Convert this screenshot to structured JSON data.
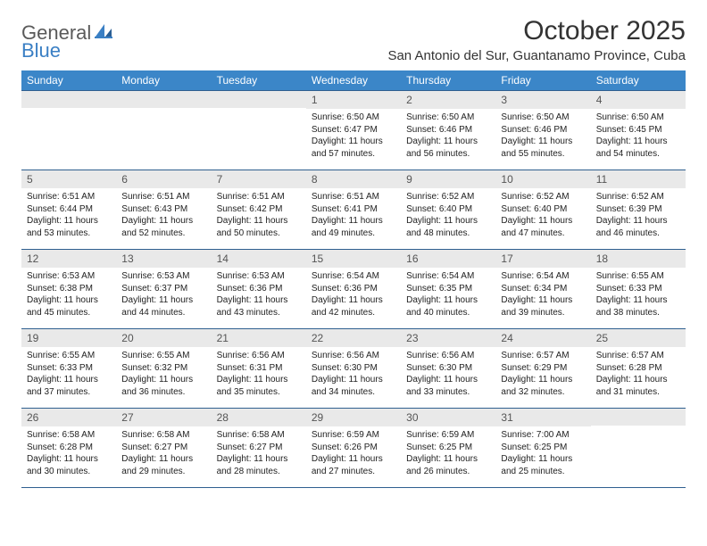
{
  "brand": {
    "general": "General",
    "blue": "Blue",
    "logo_color": "#3a7fc4"
  },
  "title": "October 2025",
  "location": "San Antonio del Sur, Guantanamo Province, Cuba",
  "header_bg": "#3b86c8",
  "header_text_color": "#ffffff",
  "daynum_bg": "#e9e9e9",
  "rule_color": "#2f5f8f",
  "weekdays": [
    "Sunday",
    "Monday",
    "Tuesday",
    "Wednesday",
    "Thursday",
    "Friday",
    "Saturday"
  ],
  "weeks": [
    [
      null,
      null,
      null,
      {
        "n": "1",
        "sr": "Sunrise: 6:50 AM",
        "ss": "Sunset: 6:47 PM",
        "d1": "Daylight: 11 hours",
        "d2": "and 57 minutes."
      },
      {
        "n": "2",
        "sr": "Sunrise: 6:50 AM",
        "ss": "Sunset: 6:46 PM",
        "d1": "Daylight: 11 hours",
        "d2": "and 56 minutes."
      },
      {
        "n": "3",
        "sr": "Sunrise: 6:50 AM",
        "ss": "Sunset: 6:46 PM",
        "d1": "Daylight: 11 hours",
        "d2": "and 55 minutes."
      },
      {
        "n": "4",
        "sr": "Sunrise: 6:50 AM",
        "ss": "Sunset: 6:45 PM",
        "d1": "Daylight: 11 hours",
        "d2": "and 54 minutes."
      }
    ],
    [
      {
        "n": "5",
        "sr": "Sunrise: 6:51 AM",
        "ss": "Sunset: 6:44 PM",
        "d1": "Daylight: 11 hours",
        "d2": "and 53 minutes."
      },
      {
        "n": "6",
        "sr": "Sunrise: 6:51 AM",
        "ss": "Sunset: 6:43 PM",
        "d1": "Daylight: 11 hours",
        "d2": "and 52 minutes."
      },
      {
        "n": "7",
        "sr": "Sunrise: 6:51 AM",
        "ss": "Sunset: 6:42 PM",
        "d1": "Daylight: 11 hours",
        "d2": "and 50 minutes."
      },
      {
        "n": "8",
        "sr": "Sunrise: 6:51 AM",
        "ss": "Sunset: 6:41 PM",
        "d1": "Daylight: 11 hours",
        "d2": "and 49 minutes."
      },
      {
        "n": "9",
        "sr": "Sunrise: 6:52 AM",
        "ss": "Sunset: 6:40 PM",
        "d1": "Daylight: 11 hours",
        "d2": "and 48 minutes."
      },
      {
        "n": "10",
        "sr": "Sunrise: 6:52 AM",
        "ss": "Sunset: 6:40 PM",
        "d1": "Daylight: 11 hours",
        "d2": "and 47 minutes."
      },
      {
        "n": "11",
        "sr": "Sunrise: 6:52 AM",
        "ss": "Sunset: 6:39 PM",
        "d1": "Daylight: 11 hours",
        "d2": "and 46 minutes."
      }
    ],
    [
      {
        "n": "12",
        "sr": "Sunrise: 6:53 AM",
        "ss": "Sunset: 6:38 PM",
        "d1": "Daylight: 11 hours",
        "d2": "and 45 minutes."
      },
      {
        "n": "13",
        "sr": "Sunrise: 6:53 AM",
        "ss": "Sunset: 6:37 PM",
        "d1": "Daylight: 11 hours",
        "d2": "and 44 minutes."
      },
      {
        "n": "14",
        "sr": "Sunrise: 6:53 AM",
        "ss": "Sunset: 6:36 PM",
        "d1": "Daylight: 11 hours",
        "d2": "and 43 minutes."
      },
      {
        "n": "15",
        "sr": "Sunrise: 6:54 AM",
        "ss": "Sunset: 6:36 PM",
        "d1": "Daylight: 11 hours",
        "d2": "and 42 minutes."
      },
      {
        "n": "16",
        "sr": "Sunrise: 6:54 AM",
        "ss": "Sunset: 6:35 PM",
        "d1": "Daylight: 11 hours",
        "d2": "and 40 minutes."
      },
      {
        "n": "17",
        "sr": "Sunrise: 6:54 AM",
        "ss": "Sunset: 6:34 PM",
        "d1": "Daylight: 11 hours",
        "d2": "and 39 minutes."
      },
      {
        "n": "18",
        "sr": "Sunrise: 6:55 AM",
        "ss": "Sunset: 6:33 PM",
        "d1": "Daylight: 11 hours",
        "d2": "and 38 minutes."
      }
    ],
    [
      {
        "n": "19",
        "sr": "Sunrise: 6:55 AM",
        "ss": "Sunset: 6:33 PM",
        "d1": "Daylight: 11 hours",
        "d2": "and 37 minutes."
      },
      {
        "n": "20",
        "sr": "Sunrise: 6:55 AM",
        "ss": "Sunset: 6:32 PM",
        "d1": "Daylight: 11 hours",
        "d2": "and 36 minutes."
      },
      {
        "n": "21",
        "sr": "Sunrise: 6:56 AM",
        "ss": "Sunset: 6:31 PM",
        "d1": "Daylight: 11 hours",
        "d2": "and 35 minutes."
      },
      {
        "n": "22",
        "sr": "Sunrise: 6:56 AM",
        "ss": "Sunset: 6:30 PM",
        "d1": "Daylight: 11 hours",
        "d2": "and 34 minutes."
      },
      {
        "n": "23",
        "sr": "Sunrise: 6:56 AM",
        "ss": "Sunset: 6:30 PM",
        "d1": "Daylight: 11 hours",
        "d2": "and 33 minutes."
      },
      {
        "n": "24",
        "sr": "Sunrise: 6:57 AM",
        "ss": "Sunset: 6:29 PM",
        "d1": "Daylight: 11 hours",
        "d2": "and 32 minutes."
      },
      {
        "n": "25",
        "sr": "Sunrise: 6:57 AM",
        "ss": "Sunset: 6:28 PM",
        "d1": "Daylight: 11 hours",
        "d2": "and 31 minutes."
      }
    ],
    [
      {
        "n": "26",
        "sr": "Sunrise: 6:58 AM",
        "ss": "Sunset: 6:28 PM",
        "d1": "Daylight: 11 hours",
        "d2": "and 30 minutes."
      },
      {
        "n": "27",
        "sr": "Sunrise: 6:58 AM",
        "ss": "Sunset: 6:27 PM",
        "d1": "Daylight: 11 hours",
        "d2": "and 29 minutes."
      },
      {
        "n": "28",
        "sr": "Sunrise: 6:58 AM",
        "ss": "Sunset: 6:27 PM",
        "d1": "Daylight: 11 hours",
        "d2": "and 28 minutes."
      },
      {
        "n": "29",
        "sr": "Sunrise: 6:59 AM",
        "ss": "Sunset: 6:26 PM",
        "d1": "Daylight: 11 hours",
        "d2": "and 27 minutes."
      },
      {
        "n": "30",
        "sr": "Sunrise: 6:59 AM",
        "ss": "Sunset: 6:25 PM",
        "d1": "Daylight: 11 hours",
        "d2": "and 26 minutes."
      },
      {
        "n": "31",
        "sr": "Sunrise: 7:00 AM",
        "ss": "Sunset: 6:25 PM",
        "d1": "Daylight: 11 hours",
        "d2": "and 25 minutes."
      },
      null
    ]
  ]
}
